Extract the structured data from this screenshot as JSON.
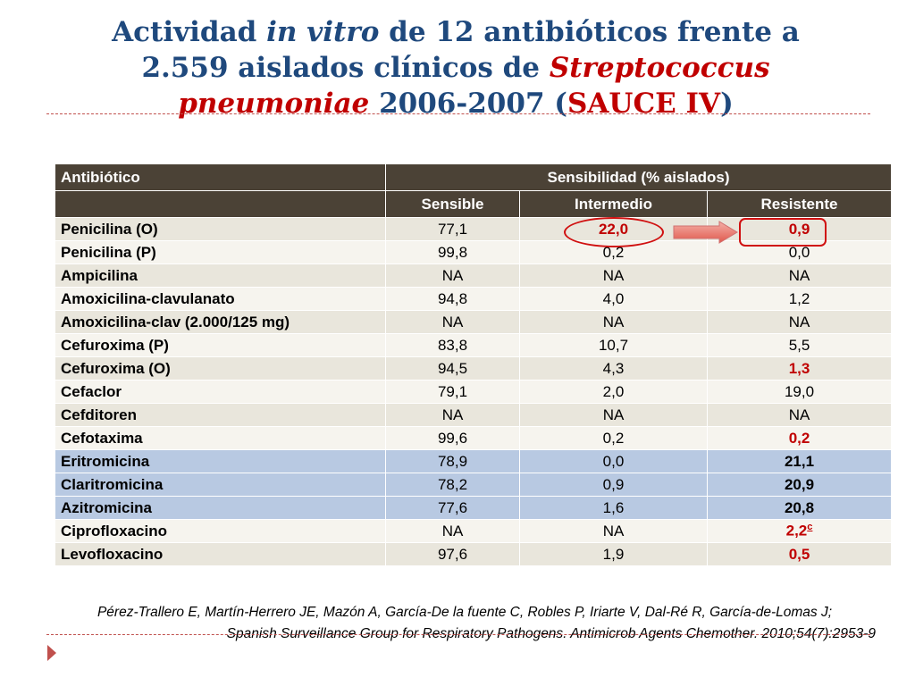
{
  "title": {
    "part1": "Actividad ",
    "part2": "in vitro",
    "part3": " de 12 antibióticos frente a",
    "part4": "2.559 aislados clínicos de ",
    "part5": "Streptococcus",
    "part6": "pneumoniae",
    "part7": " 2006-2007 (",
    "part8": "SAUCE IV",
    "part9": ")"
  },
  "table": {
    "header_col1": "Antibiótico",
    "header_group": "Sensibilidad  (% aislados)",
    "sub_sensible": "Sensible",
    "sub_intermedio": "Intermedio",
    "sub_resistente": "Resistente",
    "rows": [
      {
        "name": "Penicilina (O)",
        "s": "77,1",
        "i": "22,0",
        "r": "0,9"
      },
      {
        "name": "Penicilina (P)",
        "s": "99,8",
        "i": "0,2",
        "r": "0,0"
      },
      {
        "name": "Ampicilina",
        "s": "NA",
        "i": "NA",
        "r": "NA"
      },
      {
        "name": "Amoxicilina-clavulanato",
        "s": "94,8",
        "i": "4,0",
        "r": "1,2"
      },
      {
        "name": "Amoxicilina-clav (2.000/125 mg)",
        "s": "NA",
        "i": "NA",
        "r": "NA"
      },
      {
        "name": "Cefuroxima (P)",
        "s": "83,8",
        "i": "10,7",
        "r": "5,5"
      },
      {
        "name": "Cefuroxima (O)",
        "s": "94,5",
        "i": "4,3",
        "r": "1,3"
      },
      {
        "name": "Cefaclor",
        "s": "79,1",
        "i": "2,0",
        "r": "19,0"
      },
      {
        "name": "Cefditoren",
        "s": "NA",
        "i": "NA",
        "r": "NA"
      },
      {
        "name": "Cefotaxima",
        "s": "99,6",
        "i": "0,2",
        "r": "0,2"
      },
      {
        "name": "Eritromicina",
        "s": "78,9",
        "i": "0,0",
        "r": "21,1"
      },
      {
        "name": "Claritromicina",
        "s": "78,2",
        "i": "0,9",
        "r": "20,9"
      },
      {
        "name": "Azitromicina",
        "s": "77,6",
        "i": "1,6",
        "r": "20,8"
      },
      {
        "name": "Ciprofloxacino",
        "s": "NA",
        "i": "NA",
        "r": "2,2",
        "sup": "c"
      },
      {
        "name": "Levofloxacino",
        "s": "97,6",
        "i": "1,9",
        "r": "0,5"
      }
    ]
  },
  "reference": {
    "line1": "Pérez-Trallero E, Martín-Herrero JE, Mazón A, García-De la fuente C, Robles P, Iriarte V, Dal-Ré R, García-de-Lomas J;",
    "line2": "Spanish Surveillance Group for Respiratory Pathogens. Antimicrob Agents Chemother. 2010;54(7):2953-9"
  },
  "colors": {
    "title_blue": "#1f497d",
    "accent_red": "#c00000",
    "header_brown": "#4b4236",
    "row_beige": "#e9e6dc",
    "row_blue": "#b8c9e2"
  },
  "icons": {
    "annotation_arrow": "right-arrow-icon",
    "slide_bullet": "triangle-bullet-icon"
  }
}
